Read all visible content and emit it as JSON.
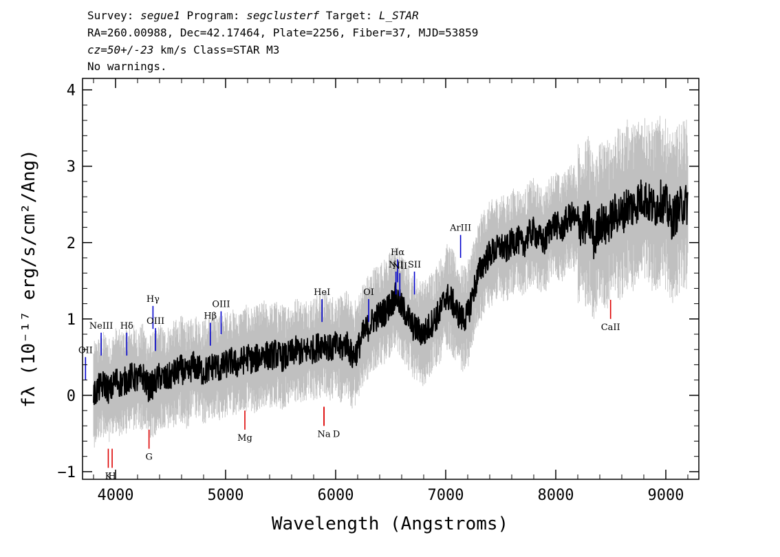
{
  "header": {
    "line1": {
      "survey_label": "Survey: ",
      "survey": "segue1",
      "program_label": " Program: ",
      "program": "segclusterf",
      "target_label": " Target: ",
      "target": "L_STAR"
    },
    "line2": "RA=260.00988, Dec=42.17464, Plate=2256, Fiber=37, MJD=53859",
    "line3": {
      "cz": "cz=50+/-23",
      "rest": " km/s Class=STAR M3"
    },
    "line4": "No warnings."
  },
  "chart_data": {
    "type": "line",
    "title": "",
    "xlabel": "Wavelength (Angstroms)",
    "ylabel": "fλ (10⁻¹⁷ erg/s/cm²/Ang)",
    "xlim": [
      3700,
      9300
    ],
    "ylim": [
      -1.1,
      4.15
    ],
    "x_ticks": [
      4000,
      5000,
      6000,
      7000,
      8000,
      9000
    ],
    "x_tick_labels": [
      "4000",
      "5000",
      "6000",
      "7000",
      "8000",
      "9000"
    ],
    "y_ticks": [
      -1,
      0,
      1,
      2,
      3,
      4
    ],
    "y_tick_labels": [
      "−1",
      "0",
      "1",
      "2",
      "3",
      "4"
    ],
    "grid": false,
    "colors": {
      "flux": "#000000",
      "error": "#c0c0c0",
      "emission": "#0000cc",
      "absorption": "#dd0000"
    },
    "series": [
      {
        "role": "flux",
        "x": [
          3800,
          3850,
          3900,
          3950,
          4000,
          4050,
          4100,
          4150,
          4200,
          4250,
          4300,
          4350,
          4400,
          4450,
          4500,
          4550,
          4600,
          4650,
          4700,
          4750,
          4800,
          4850,
          4900,
          4950,
          5000,
          5050,
          5100,
          5150,
          5200,
          5250,
          5300,
          5350,
          5400,
          5450,
          5500,
          5550,
          5600,
          5650,
          5700,
          5750,
          5800,
          5850,
          5900,
          5950,
          6000,
          6050,
          6100,
          6150,
          6200,
          6250,
          6300,
          6350,
          6400,
          6450,
          6500,
          6550,
          6600,
          6650,
          6700,
          6750,
          6800,
          6850,
          6900,
          6950,
          7000,
          7050,
          7100,
          7150,
          7200,
          7250,
          7300,
          7350,
          7400,
          7450,
          7500,
          7550,
          7600,
          7650,
          7700,
          7750,
          7800,
          7850,
          7900,
          7950,
          8000,
          8050,
          8100,
          8150,
          8200,
          8250,
          8300,
          8350,
          8400,
          8450,
          8500,
          8550,
          8600,
          8650,
          8700,
          8750,
          8800,
          8850,
          8900,
          8950,
          9000,
          9050,
          9100,
          9150,
          9200
        ],
        "y": [
          0.0,
          0.1,
          0.15,
          0.05,
          0.2,
          0.15,
          0.2,
          0.25,
          0.2,
          0.25,
          0.1,
          0.15,
          0.25,
          0.2,
          0.25,
          0.3,
          0.35,
          0.25,
          0.4,
          0.35,
          0.3,
          0.35,
          0.4,
          0.35,
          0.4,
          0.45,
          0.4,
          0.45,
          0.5,
          0.45,
          0.5,
          0.55,
          0.5,
          0.55,
          0.5,
          0.5,
          0.55,
          0.6,
          0.55,
          0.6,
          0.6,
          0.65,
          0.7,
          0.6,
          0.65,
          0.6,
          0.7,
          0.5,
          0.6,
          0.8,
          0.9,
          1.0,
          1.05,
          1.1,
          1.2,
          1.3,
          1.15,
          1.05,
          0.9,
          0.85,
          0.8,
          0.9,
          1.0,
          1.1,
          1.3,
          1.25,
          1.1,
          1.0,
          1.05,
          1.35,
          1.6,
          1.75,
          1.85,
          1.9,
          1.95,
          1.9,
          2.0,
          2.05,
          1.95,
          2.1,
          2.15,
          2.05,
          2.0,
          2.2,
          2.25,
          2.15,
          2.3,
          2.35,
          2.25,
          2.2,
          2.3,
          2.0,
          2.3,
          2.2,
          2.3,
          2.4,
          2.35,
          2.5,
          2.45,
          2.55,
          2.6,
          2.5,
          2.45,
          2.55,
          2.5,
          2.3,
          2.4,
          2.5,
          2.5
        ]
      }
    ],
    "spectral_lines": {
      "emission": [
        {
          "label": "OII",
          "wave": 3727,
          "top": 0.5
        },
        {
          "label": "NeIII",
          "wave": 3869,
          "top": 0.82
        },
        {
          "label": "Hδ",
          "wave": 4102,
          "top": 0.82
        },
        {
          "label": "Hγ",
          "wave": 4340,
          "top": 1.17
        },
        {
          "label": "OIII",
          "wave": 4363,
          "top": 0.88
        },
        {
          "label": "Hβ",
          "wave": 4861,
          "top": 0.95
        },
        {
          "label": "OIII",
          "wave": 4959,
          "top": 1.1
        },
        {
          "label": "HeI",
          "wave": 5876,
          "top": 1.26
        },
        {
          "label": "OI",
          "wave": 6300,
          "top": 1.26
        },
        {
          "label": "NII",
          "wave": 6548,
          "top": 1.62
        },
        {
          "label": "Hα",
          "wave": 6563,
          "top": 1.78
        },
        {
          "label": "NII",
          "wave": 6583,
          "top": 1.6
        },
        {
          "label": "SII",
          "wave": 6716,
          "top": 1.62
        },
        {
          "label": "ArIII",
          "wave": 7135,
          "top": 2.1
        }
      ],
      "absorption": [
        {
          "label": "K",
          "wave": 3934,
          "bottom": -0.95
        },
        {
          "label": "H",
          "wave": 3969,
          "bottom": -0.95
        },
        {
          "label": "G",
          "wave": 4304,
          "bottom": -0.7
        },
        {
          "label": "Mg",
          "wave": 5175,
          "bottom": -0.45
        },
        {
          "label": "Na",
          "wave": 5894,
          "bottom": -0.4
        },
        {
          "label": "D",
          "wave": 5894,
          "bottom": -0.4
        },
        {
          "label": "CaII",
          "wave": 8498,
          "bottom": 1.0
        }
      ]
    }
  }
}
